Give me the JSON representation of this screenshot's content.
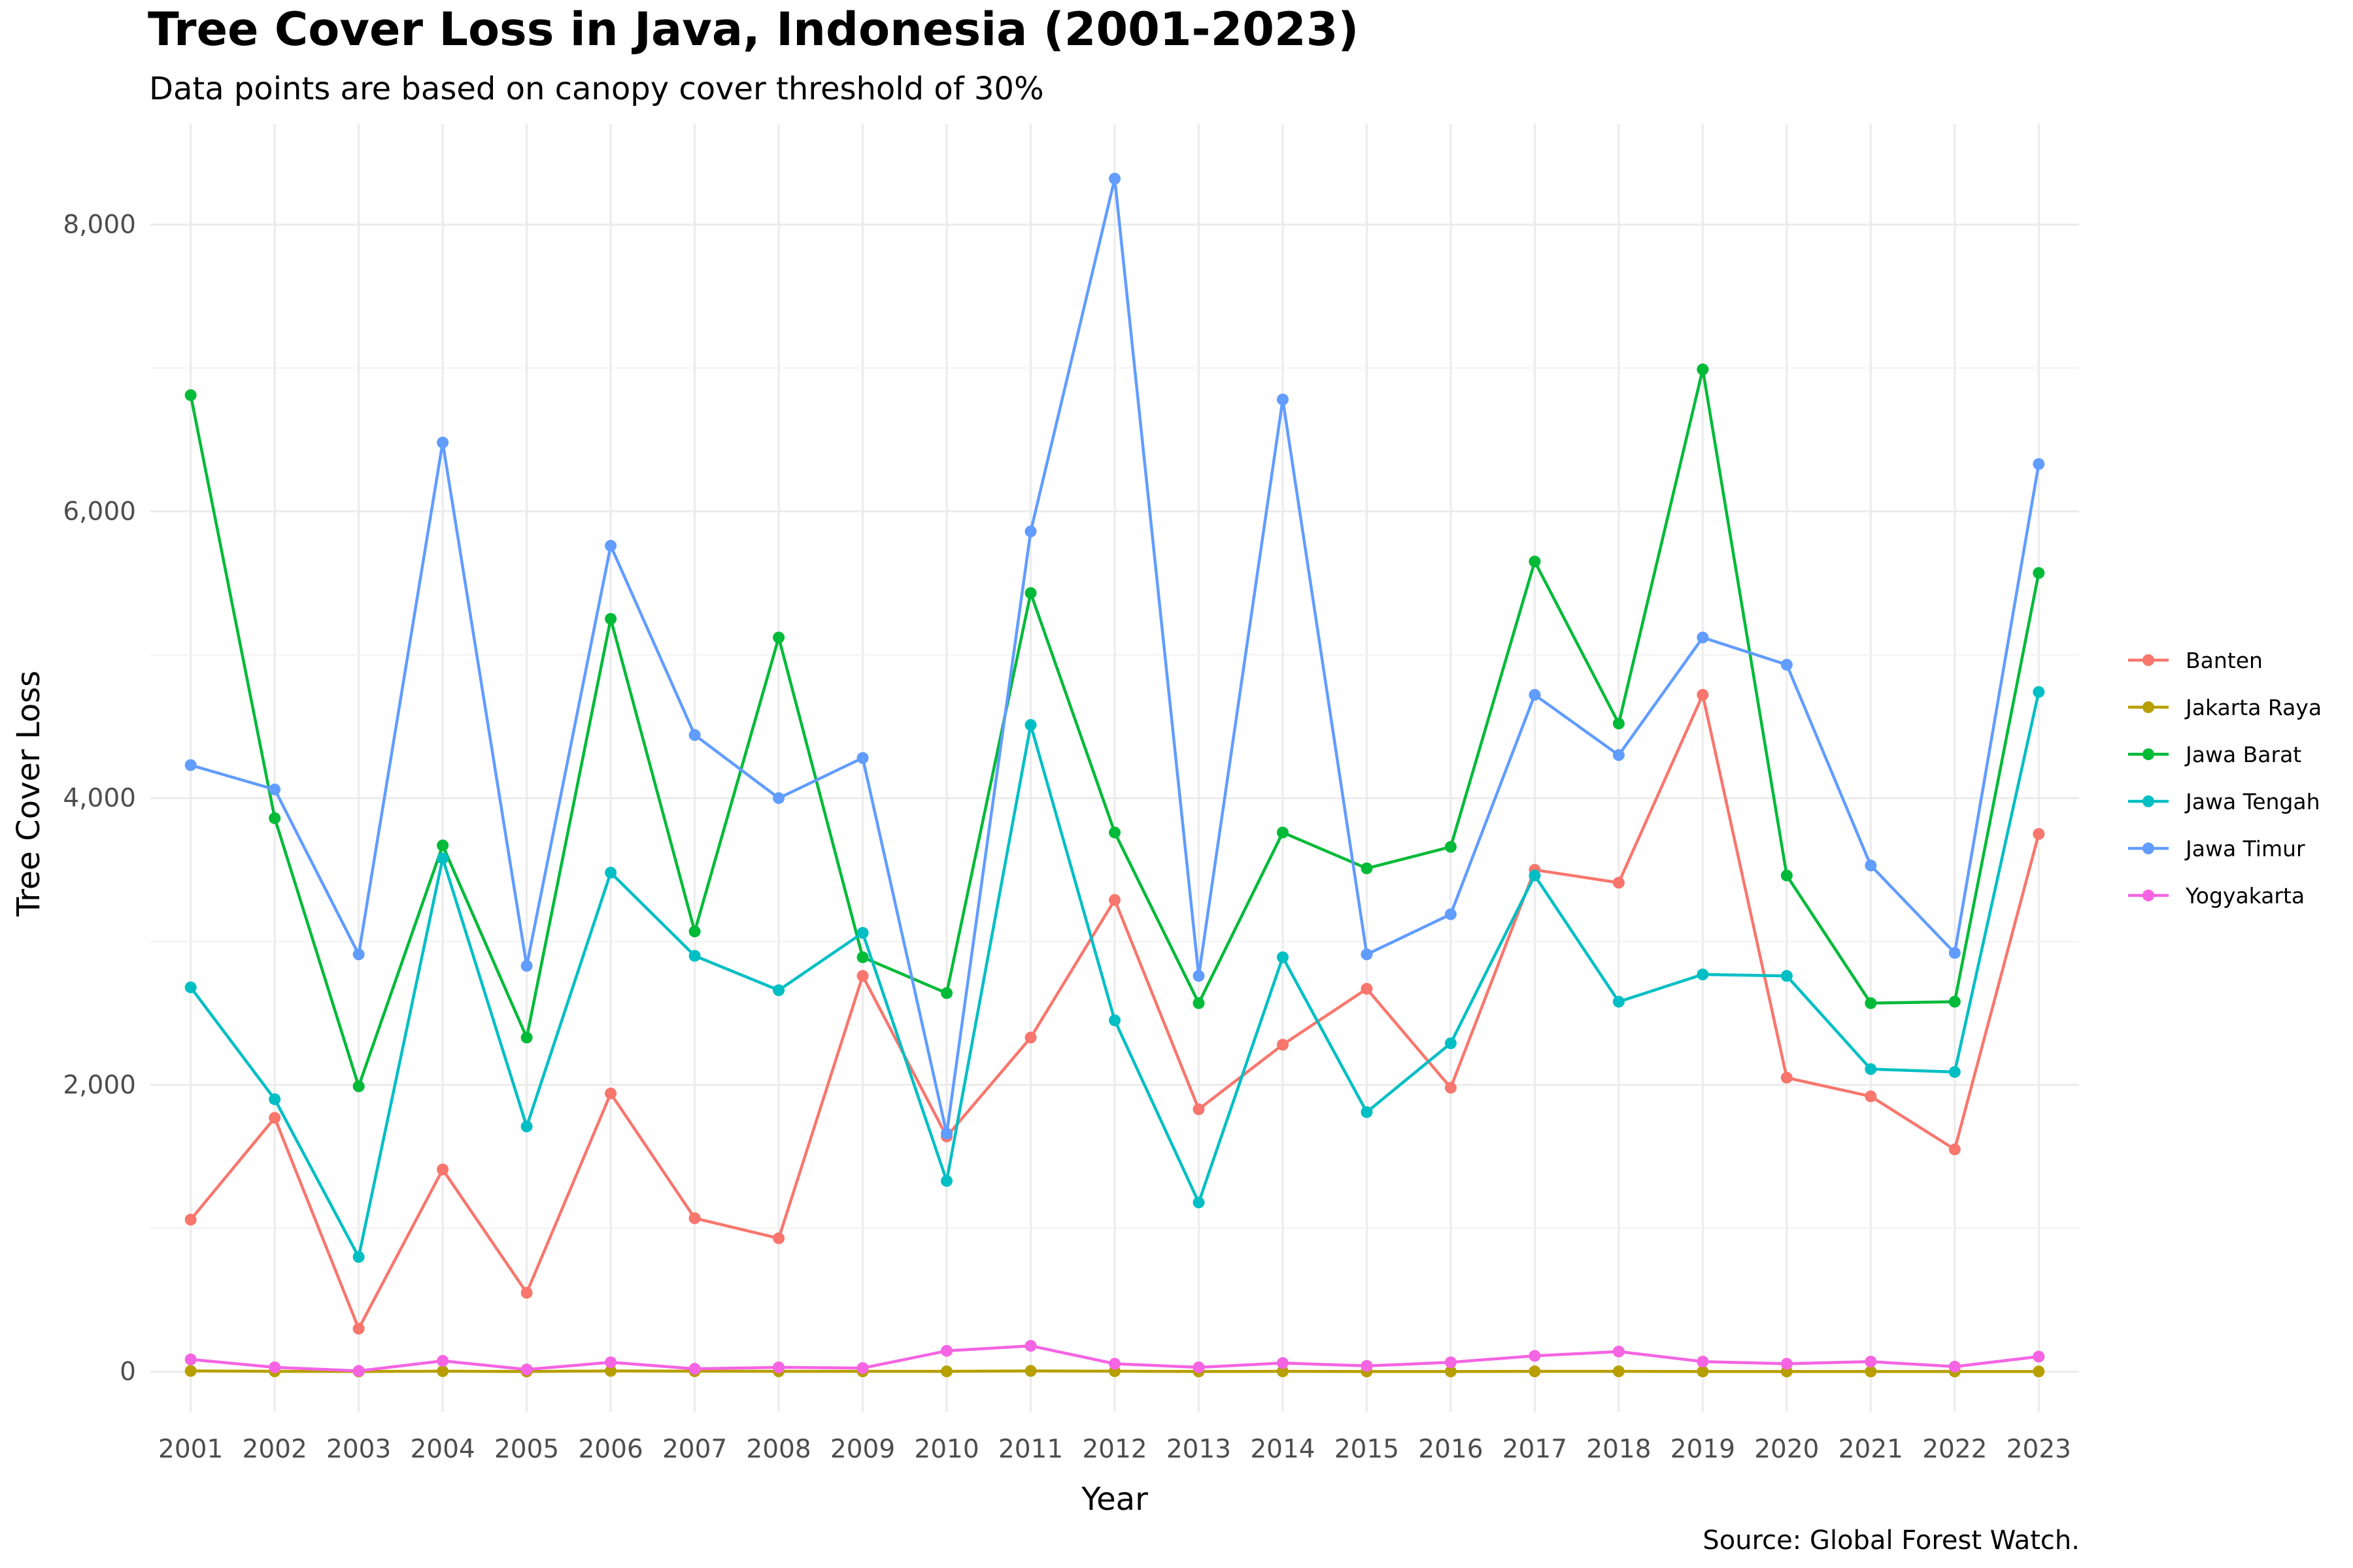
{
  "chart_data": {
    "type": "line",
    "title": "Tree Cover Loss in Java, Indonesia (2001-2023)",
    "subtitle": "Data points are based on canopy cover threshold of 30%",
    "xlabel": "Year",
    "ylabel": "Tree Cover Loss",
    "caption": "Source: Global Forest Watch.",
    "ylim": [
      -280,
      8700
    ],
    "y_ticks": [
      0,
      2000,
      4000,
      6000,
      8000
    ],
    "y_tick_labels": [
      "0",
      "2,000",
      "4,000",
      "6,000",
      "8,000"
    ],
    "grid": true,
    "legend_position": "right",
    "x": [
      "2001",
      "2002",
      "2003",
      "2004",
      "2005",
      "2006",
      "2007",
      "2008",
      "2009",
      "2010",
      "2011",
      "2012",
      "2013",
      "2014",
      "2015",
      "2016",
      "2017",
      "2018",
      "2019",
      "2020",
      "2021",
      "2022",
      "2023"
    ],
    "series": [
      {
        "name": "Banten",
        "color": "#F8766D",
        "values": [
          1060,
          1770,
          300,
          1410,
          550,
          1940,
          1070,
          930,
          2760,
          1640,
          2330,
          3290,
          1830,
          2280,
          2670,
          1980,
          3500,
          3410,
          4720,
          2050,
          1920,
          1550,
          3750
        ]
      },
      {
        "name": "Jakarta Raya",
        "color": "#B79F00",
        "values": [
          5,
          2,
          1,
          3,
          1,
          5,
          3,
          2,
          2,
          2,
          5,
          3,
          1,
          2,
          1,
          1,
          2,
          2,
          1,
          1,
          1,
          1,
          1
        ]
      },
      {
        "name": "Jawa Barat",
        "color": "#00BA38",
        "values": [
          6810,
          3860,
          1990,
          3670,
          2330,
          5250,
          3070,
          5120,
          2890,
          2640,
          5430,
          3760,
          2570,
          3760,
          3510,
          3660,
          5650,
          4520,
          6990,
          3460,
          2570,
          2580,
          5570
        ]
      },
      {
        "name": "Jawa Tengah",
        "color": "#00BFC4",
        "values": [
          2680,
          1900,
          800,
          3580,
          1710,
          3480,
          2900,
          2660,
          3060,
          1330,
          4510,
          2450,
          1180,
          2890,
          1810,
          2290,
          3460,
          2580,
          2770,
          2760,
          2110,
          2090,
          4740
        ]
      },
      {
        "name": "Jawa Timur",
        "color": "#619CFF",
        "values": [
          4230,
          4060,
          2910,
          6480,
          2830,
          5760,
          4440,
          4000,
          4280,
          1660,
          5860,
          8320,
          2760,
          6780,
          2910,
          3190,
          4720,
          4300,
          5120,
          4930,
          3530,
          2920,
          6330
        ]
      },
      {
        "name": "Yogyakarta",
        "color": "#F564E3",
        "values": [
          85,
          30,
          5,
          75,
          15,
          65,
          20,
          30,
          25,
          145,
          180,
          55,
          30,
          60,
          40,
          65,
          110,
          140,
          70,
          55,
          70,
          35,
          105
        ]
      }
    ]
  }
}
